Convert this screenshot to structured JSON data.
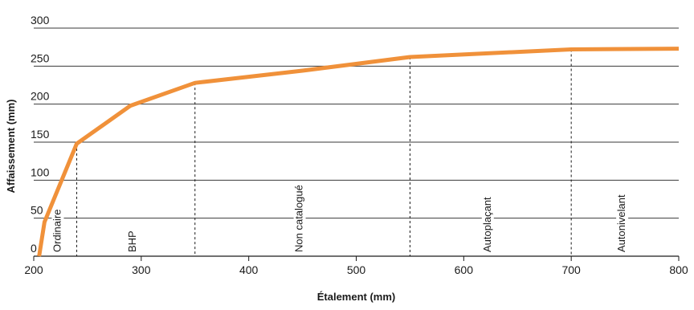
{
  "chart_data": {
    "type": "line",
    "xlabel": "Étalement (mm)",
    "ylabel": "Affaissement (mm)",
    "xlim": [
      200,
      800
    ],
    "ylim": [
      0,
      300
    ],
    "x_ticks": [
      200,
      300,
      400,
      500,
      600,
      700,
      800
    ],
    "y_ticks": [
      0,
      50,
      100,
      150,
      200,
      250,
      300
    ],
    "grid": "horizontal",
    "color": "#f0913a",
    "series": [
      {
        "x": [
          205,
          210,
          240,
          290,
          350,
          450,
          550,
          700,
          800
        ],
        "y": [
          0,
          45,
          148,
          198,
          228,
          244,
          262,
          272,
          273
        ]
      }
    ],
    "zones": [
      {
        "label": "Ordinaire",
        "boundary_x": 240,
        "boundary_y": 148,
        "label_x": 225
      },
      {
        "label": "BHP",
        "boundary_x": 350,
        "boundary_y": 228,
        "label_x": 295
      },
      {
        "label": "Non catalogué",
        "boundary_x": 550,
        "boundary_y": 262,
        "label_x": 450
      },
      {
        "label": "Autoplaçant",
        "boundary_x": 700,
        "boundary_y": 272,
        "label_x": 625
      },
      {
        "label": "Autonivelant",
        "boundary_x": null,
        "boundary_y": null,
        "label_x": 750
      }
    ]
  }
}
